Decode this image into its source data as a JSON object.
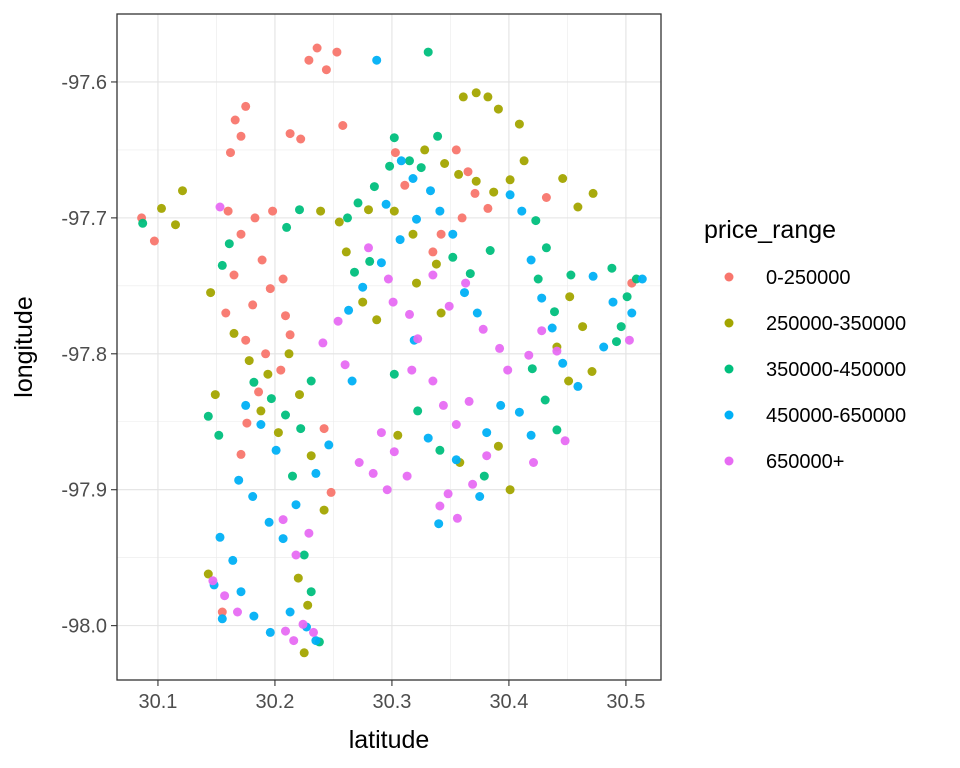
{
  "chart_data": {
    "type": "scatter",
    "xlabel": "latitude",
    "ylabel": "longitude",
    "xlim": [
      30.065,
      30.53
    ],
    "ylim": [
      -98.04,
      -97.55
    ],
    "x_ticks": [
      30.1,
      30.2,
      30.3,
      30.4,
      30.5
    ],
    "x_tick_labels": [
      "30.1",
      "30.2",
      "30.3",
      "30.4",
      "30.5"
    ],
    "y_ticks": [
      -97.6,
      -97.7,
      -97.8,
      -97.9,
      -98.0
    ],
    "y_tick_labels": [
      "-97.6",
      "-97.7",
      "-97.8",
      "-97.9",
      "-98.0"
    ],
    "grid": true,
    "legend": {
      "title": "price_range",
      "position": "right"
    },
    "series": [
      {
        "name": "0-250000",
        "color": "#F8766D",
        "points": [
          [
            30.229,
            -97.584
          ],
          [
            30.236,
            -97.575
          ],
          [
            30.244,
            -97.591
          ],
          [
            30.253,
            -97.578
          ],
          [
            30.166,
            -97.628
          ],
          [
            30.171,
            -97.64
          ],
          [
            30.162,
            -97.652
          ],
          [
            30.175,
            -97.618
          ],
          [
            30.213,
            -97.638
          ],
          [
            30.222,
            -97.642
          ],
          [
            30.303,
            -97.652
          ],
          [
            30.311,
            -97.676
          ],
          [
            30.258,
            -97.632
          ],
          [
            30.355,
            -97.65
          ],
          [
            30.365,
            -97.666
          ],
          [
            30.371,
            -97.682
          ],
          [
            30.382,
            -97.693
          ],
          [
            30.36,
            -97.7
          ],
          [
            30.342,
            -97.712
          ],
          [
            30.335,
            -97.725
          ],
          [
            30.086,
            -97.7
          ],
          [
            30.097,
            -97.717
          ],
          [
            30.16,
            -97.695
          ],
          [
            30.171,
            -97.712
          ],
          [
            30.183,
            -97.7
          ],
          [
            30.198,
            -97.695
          ],
          [
            30.207,
            -97.745
          ],
          [
            30.196,
            -97.752
          ],
          [
            30.181,
            -97.764
          ],
          [
            30.189,
            -97.731
          ],
          [
            30.165,
            -97.742
          ],
          [
            30.158,
            -97.77
          ],
          [
            30.175,
            -97.79
          ],
          [
            30.192,
            -97.8
          ],
          [
            30.205,
            -97.812
          ],
          [
            30.186,
            -97.828
          ],
          [
            30.209,
            -97.772
          ],
          [
            30.213,
            -97.786
          ],
          [
            30.176,
            -97.851
          ],
          [
            30.171,
            -97.874
          ],
          [
            30.242,
            -97.855
          ],
          [
            30.248,
            -97.902
          ],
          [
            30.155,
            -97.99
          ],
          [
            30.432,
            -97.685
          ],
          [
            30.505,
            -97.748
          ]
        ]
      },
      {
        "name": "250000-350000",
        "color": "#A3A500",
        "points": [
          [
            30.361,
            -97.611
          ],
          [
            30.372,
            -97.608
          ],
          [
            30.382,
            -97.611
          ],
          [
            30.391,
            -97.62
          ],
          [
            30.409,
            -97.631
          ],
          [
            30.328,
            -97.65
          ],
          [
            30.345,
            -97.66
          ],
          [
            30.357,
            -97.668
          ],
          [
            30.372,
            -97.673
          ],
          [
            30.387,
            -97.681
          ],
          [
            30.401,
            -97.672
          ],
          [
            30.413,
            -97.658
          ],
          [
            30.446,
            -97.671
          ],
          [
            30.459,
            -97.692
          ],
          [
            30.472,
            -97.682
          ],
          [
            30.121,
            -97.68
          ],
          [
            30.103,
            -97.693
          ],
          [
            30.115,
            -97.705
          ],
          [
            30.239,
            -97.695
          ],
          [
            30.255,
            -97.703
          ],
          [
            30.28,
            -97.694
          ],
          [
            30.302,
            -97.695
          ],
          [
            30.318,
            -97.712
          ],
          [
            30.321,
            -97.748
          ],
          [
            30.338,
            -97.734
          ],
          [
            30.342,
            -97.77
          ],
          [
            30.275,
            -97.762
          ],
          [
            30.287,
            -97.775
          ],
          [
            30.261,
            -97.725
          ],
          [
            30.452,
            -97.758
          ],
          [
            30.463,
            -97.78
          ],
          [
            30.441,
            -97.795
          ],
          [
            30.471,
            -97.813
          ],
          [
            30.165,
            -97.785
          ],
          [
            30.178,
            -97.805
          ],
          [
            30.194,
            -97.815
          ],
          [
            30.188,
            -97.842
          ],
          [
            30.203,
            -97.858
          ],
          [
            30.212,
            -97.8
          ],
          [
            30.221,
            -97.83
          ],
          [
            30.231,
            -97.875
          ],
          [
            30.242,
            -97.915
          ],
          [
            30.22,
            -97.965
          ],
          [
            30.228,
            -97.985
          ],
          [
            30.225,
            -98.02
          ],
          [
            30.305,
            -97.86
          ],
          [
            30.358,
            -97.88
          ],
          [
            30.401,
            -97.9
          ],
          [
            30.391,
            -97.868
          ],
          [
            30.451,
            -97.82
          ],
          [
            30.145,
            -97.755
          ],
          [
            30.149,
            -97.83
          ],
          [
            30.143,
            -97.962
          ]
        ]
      },
      {
        "name": "350000-450000",
        "color": "#00BF7D",
        "points": [
          [
            30.331,
            -97.578
          ],
          [
            30.302,
            -97.641
          ],
          [
            30.315,
            -97.658
          ],
          [
            30.325,
            -97.663
          ],
          [
            30.339,
            -97.64
          ],
          [
            30.298,
            -97.662
          ],
          [
            30.285,
            -97.677
          ],
          [
            30.271,
            -97.689
          ],
          [
            30.262,
            -97.7
          ],
          [
            30.087,
            -97.704
          ],
          [
            30.221,
            -97.694
          ],
          [
            30.21,
            -97.707
          ],
          [
            30.161,
            -97.719
          ],
          [
            30.155,
            -97.735
          ],
          [
            30.268,
            -97.74
          ],
          [
            30.281,
            -97.732
          ],
          [
            30.352,
            -97.729
          ],
          [
            30.367,
            -97.741
          ],
          [
            30.384,
            -97.724
          ],
          [
            30.423,
            -97.702
          ],
          [
            30.432,
            -97.722
          ],
          [
            30.425,
            -97.745
          ],
          [
            30.439,
            -97.769
          ],
          [
            30.453,
            -97.742
          ],
          [
            30.488,
            -97.737
          ],
          [
            30.501,
            -97.758
          ],
          [
            30.496,
            -97.78
          ],
          [
            30.509,
            -97.745
          ],
          [
            30.492,
            -97.791
          ],
          [
            30.182,
            -97.821
          ],
          [
            30.197,
            -97.833
          ],
          [
            30.209,
            -97.845
          ],
          [
            30.143,
            -97.846
          ],
          [
            30.152,
            -97.86
          ],
          [
            30.231,
            -97.82
          ],
          [
            30.222,
            -97.855
          ],
          [
            30.215,
            -97.89
          ],
          [
            30.225,
            -97.948
          ],
          [
            30.231,
            -97.975
          ],
          [
            30.238,
            -98.012
          ],
          [
            30.302,
            -97.815
          ],
          [
            30.322,
            -97.842
          ],
          [
            30.341,
            -97.871
          ],
          [
            30.379,
            -97.89
          ],
          [
            30.42,
            -97.811
          ],
          [
            30.431,
            -97.834
          ],
          [
            30.441,
            -97.856
          ]
        ]
      },
      {
        "name": "450000-650000",
        "color": "#00B0F6",
        "points": [
          [
            30.287,
            -97.584
          ],
          [
            30.308,
            -97.658
          ],
          [
            30.318,
            -97.671
          ],
          [
            30.333,
            -97.68
          ],
          [
            30.295,
            -97.69
          ],
          [
            30.321,
            -97.701
          ],
          [
            30.307,
            -97.716
          ],
          [
            30.291,
            -97.733
          ],
          [
            30.275,
            -97.751
          ],
          [
            30.263,
            -97.768
          ],
          [
            30.341,
            -97.695
          ],
          [
            30.352,
            -97.712
          ],
          [
            30.362,
            -97.755
          ],
          [
            30.373,
            -97.77
          ],
          [
            30.401,
            -97.683
          ],
          [
            30.411,
            -97.695
          ],
          [
            30.419,
            -97.731
          ],
          [
            30.428,
            -97.759
          ],
          [
            30.437,
            -97.781
          ],
          [
            30.446,
            -97.807
          ],
          [
            30.459,
            -97.824
          ],
          [
            30.472,
            -97.743
          ],
          [
            30.489,
            -97.762
          ],
          [
            30.505,
            -97.77
          ],
          [
            30.514,
            -97.745
          ],
          [
            30.481,
            -97.795
          ],
          [
            30.175,
            -97.838
          ],
          [
            30.188,
            -97.852
          ],
          [
            30.201,
            -97.871
          ],
          [
            30.169,
            -97.893
          ],
          [
            30.181,
            -97.905
          ],
          [
            30.195,
            -97.924
          ],
          [
            30.207,
            -97.936
          ],
          [
            30.218,
            -97.911
          ],
          [
            30.235,
            -97.888
          ],
          [
            30.246,
            -97.867
          ],
          [
            30.153,
            -97.935
          ],
          [
            30.164,
            -97.952
          ],
          [
            30.171,
            -97.975
          ],
          [
            30.182,
            -97.993
          ],
          [
            30.196,
            -98.005
          ],
          [
            30.213,
            -97.99
          ],
          [
            30.227,
            -98.001
          ],
          [
            30.235,
            -98.011
          ],
          [
            30.155,
            -97.995
          ],
          [
            30.148,
            -97.97
          ],
          [
            30.266,
            -97.82
          ],
          [
            30.319,
            -97.79
          ],
          [
            30.331,
            -97.862
          ],
          [
            30.355,
            -97.878
          ],
          [
            30.381,
            -97.858
          ],
          [
            30.393,
            -97.838
          ],
          [
            30.409,
            -97.843
          ],
          [
            30.419,
            -97.86
          ],
          [
            30.34,
            -97.925
          ],
          [
            30.375,
            -97.905
          ]
        ]
      },
      {
        "name": "650000+",
        "color": "#E76BF3",
        "points": [
          [
            30.153,
            -97.692
          ],
          [
            30.28,
            -97.722
          ],
          [
            30.297,
            -97.745
          ],
          [
            30.301,
            -97.762
          ],
          [
            30.315,
            -97.771
          ],
          [
            30.322,
            -97.789
          ],
          [
            30.335,
            -97.742
          ],
          [
            30.349,
            -97.765
          ],
          [
            30.363,
            -97.748
          ],
          [
            30.378,
            -97.782
          ],
          [
            30.392,
            -97.796
          ],
          [
            30.317,
            -97.812
          ],
          [
            30.335,
            -97.82
          ],
          [
            30.344,
            -97.838
          ],
          [
            30.355,
            -97.852
          ],
          [
            30.366,
            -97.835
          ],
          [
            30.291,
            -97.858
          ],
          [
            30.302,
            -97.872
          ],
          [
            30.284,
            -97.888
          ],
          [
            30.296,
            -97.9
          ],
          [
            30.272,
            -97.88
          ],
          [
            30.313,
            -97.89
          ],
          [
            30.348,
            -97.903
          ],
          [
            30.356,
            -97.921
          ],
          [
            30.341,
            -97.912
          ],
          [
            30.369,
            -97.896
          ],
          [
            30.381,
            -97.875
          ],
          [
            30.399,
            -97.812
          ],
          [
            30.417,
            -97.801
          ],
          [
            30.428,
            -97.783
          ],
          [
            30.441,
            -97.798
          ],
          [
            30.254,
            -97.776
          ],
          [
            30.241,
            -97.792
          ],
          [
            30.26,
            -97.808
          ],
          [
            30.229,
            -97.932
          ],
          [
            30.218,
            -97.948
          ],
          [
            30.207,
            -97.922
          ],
          [
            30.224,
            -97.999
          ],
          [
            30.216,
            -98.011
          ],
          [
            30.209,
            -98.004
          ],
          [
            30.233,
            -98.005
          ],
          [
            30.147,
            -97.967
          ],
          [
            30.157,
            -97.978
          ],
          [
            30.168,
            -97.99
          ],
          [
            30.421,
            -97.88
          ],
          [
            30.448,
            -97.864
          ],
          [
            30.503,
            -97.79
          ]
        ]
      }
    ]
  }
}
